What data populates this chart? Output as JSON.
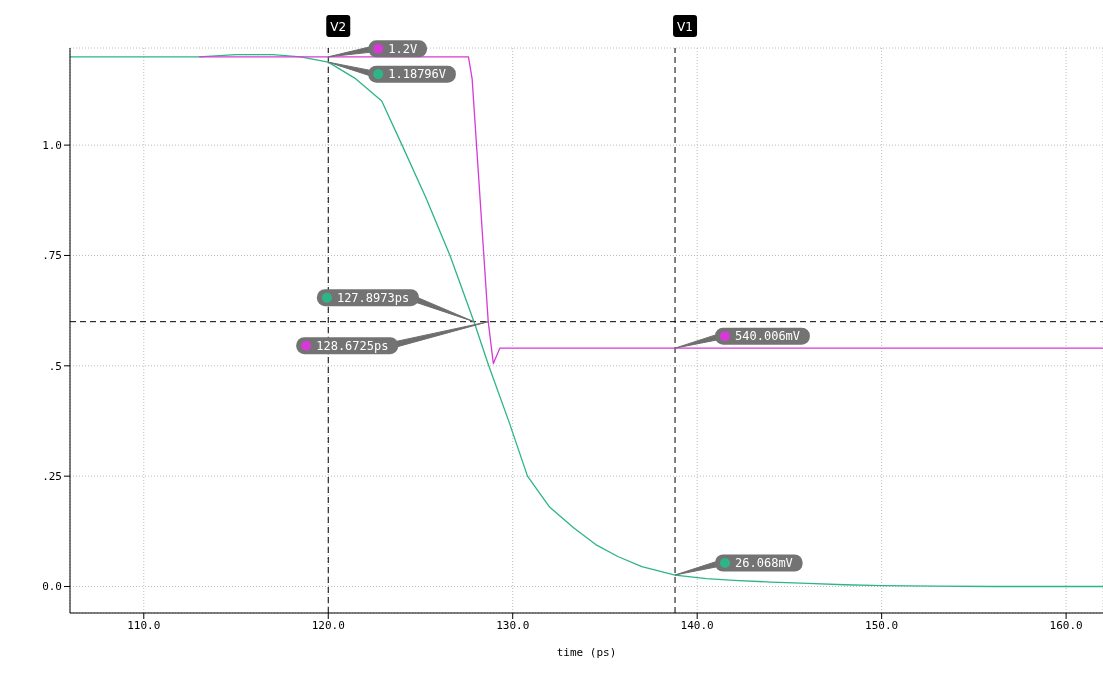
{
  "chart_data": {
    "type": "line",
    "xlabel": "time (ps)",
    "xlim": [
      106,
      162
    ],
    "ylim": [
      -0.06,
      1.22
    ],
    "xticks": [
      {
        "value": 110,
        "label": "110.0"
      },
      {
        "value": 120,
        "label": "120.0"
      },
      {
        "value": 130,
        "label": "130.0"
      },
      {
        "value": 140,
        "label": "140.0"
      },
      {
        "value": 150,
        "label": "150.0"
      },
      {
        "value": 160,
        "label": "160.0"
      }
    ],
    "yticks": [
      {
        "value": 0,
        "label": "0.0"
      },
      {
        "value": 0.25,
        "label": ".25"
      },
      {
        "value": 0.5,
        "label": ".5"
      },
      {
        "value": 0.75,
        "label": ".75"
      },
      {
        "value": 1,
        "label": "1.0"
      }
    ],
    "grid": true,
    "legend": false,
    "marker": "none",
    "line_style": "solid",
    "series": [
      {
        "color": "#2db585",
        "x": [
          106,
          113,
          115,
          117,
          118.5,
          120,
          121.5,
          122.9,
          124,
          125.3,
          126.6,
          127.9,
          128.7,
          129.8,
          130.8,
          132,
          133.3,
          134.5,
          135.7,
          137,
          138.8,
          140.5,
          142,
          144,
          146,
          148,
          150,
          153,
          156,
          162
        ],
        "values": [
          1.2,
          1.2,
          1.205,
          1.205,
          1.2,
          1.188,
          1.15,
          1.1,
          1.0,
          0.88,
          0.75,
          0.6,
          0.5,
          0.373,
          0.25,
          0.18,
          0.133,
          0.095,
          0.068,
          0.045,
          0.026,
          0.018,
          0.014,
          0.01,
          0.007,
          0.004,
          0.002,
          0.001,
          0,
          0
        ]
      },
      {
        "color": "#d63ad6",
        "x": [
          113,
          120,
          127.6,
          127.8,
          128.6725,
          128.95,
          129.3,
          138.8,
          162
        ],
        "values": [
          1.2,
          1.2,
          1.2,
          1.15,
          0.6,
          0.505,
          0.54,
          0.54,
          0.54
        ]
      }
    ],
    "ref_lines": [
      {
        "axis": "x",
        "value": 120,
        "label": "V2",
        "line_style": "dashed",
        "color": "#000000"
      },
      {
        "axis": "x",
        "value": 138.8,
        "label": "V1",
        "line_style": "dashed",
        "color": "#000000"
      },
      {
        "axis": "y",
        "value": 0.6,
        "label": null,
        "line_style": "dashed",
        "color": "#000000"
      }
    ],
    "annotations": [
      {
        "text": "1.2V",
        "x": 120,
        "y": 1.2
      },
      {
        "text": "1.18796V",
        "x": 120,
        "y": 1.18796
      },
      {
        "text": "127.8973ps",
        "x": 127.8973,
        "y": 0.6
      },
      {
        "text": "128.6725ps",
        "x": 128.6725,
        "y": 0.6
      },
      {
        "text": "540.006mV",
        "x": 138.8,
        "y": 0.540006
      },
      {
        "text": "26.068mV",
        "x": 138.8,
        "y": 0.026068
      }
    ]
  }
}
